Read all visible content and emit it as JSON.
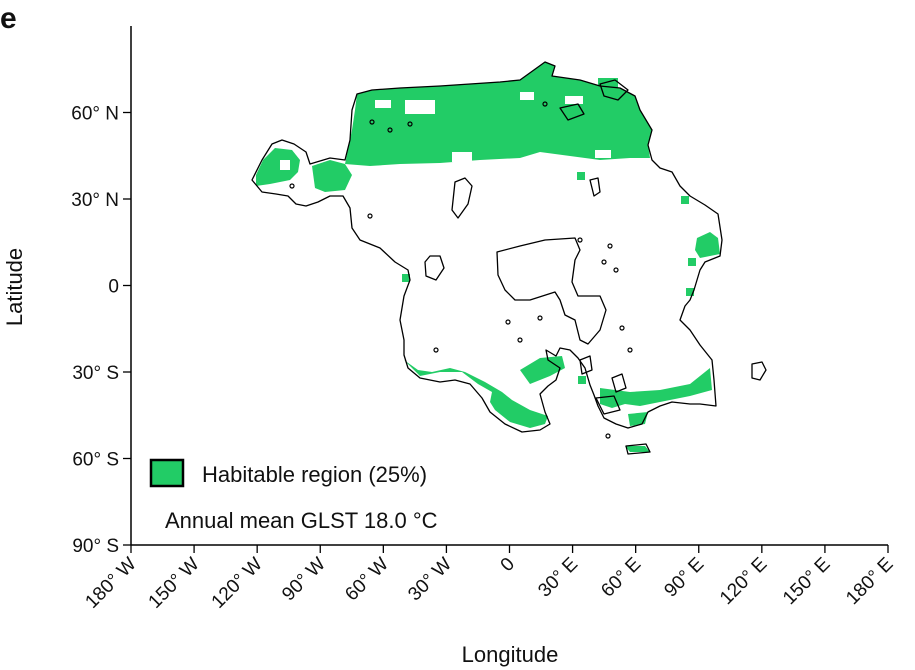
{
  "panel_label": "e",
  "map": {
    "x_axis_label": "Longitude",
    "y_axis_label": "Latitude",
    "x_ticks": [
      {
        "value": -180,
        "label": "180° W"
      },
      {
        "value": -150,
        "label": "150° W"
      },
      {
        "value": -120,
        "label": "120° W"
      },
      {
        "value": -90,
        "label": "90° W"
      },
      {
        "value": -60,
        "label": "60° W"
      },
      {
        "value": -30,
        "label": "30° W"
      },
      {
        "value": 0,
        "label": "0"
      },
      {
        "value": 30,
        "label": "30° E"
      },
      {
        "value": 60,
        "label": "60° E"
      },
      {
        "value": 90,
        "label": "90° E"
      },
      {
        "value": 120,
        "label": "120° E"
      },
      {
        "value": 150,
        "label": "150° E"
      },
      {
        "value": 180,
        "label": "180° E"
      }
    ],
    "y_ticks": [
      {
        "value": 60,
        "label": "60° N"
      },
      {
        "value": 30,
        "label": "30° N"
      },
      {
        "value": 0,
        "label": "0"
      },
      {
        "value": -30,
        "label": "30° S"
      },
      {
        "value": -60,
        "label": "60° S"
      },
      {
        "value": -90,
        "label": "90° S"
      }
    ],
    "legend": {
      "label": "Habitable region (25%)",
      "swatch_color": "#22cc66"
    },
    "annotation": "Annual mean GLST 18.0 °C",
    "habitable_color": "#22cc66",
    "outline_color": "#000000"
  }
}
